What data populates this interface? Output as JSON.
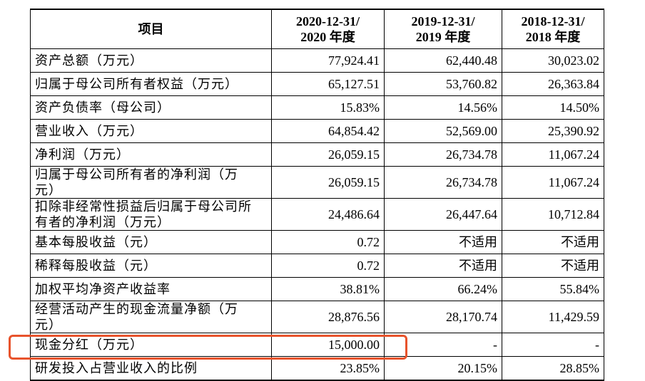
{
  "table": {
    "headers": [
      "项目",
      "2020-12-31/\n2020 年度",
      "2019-12-31/\n2019 年度",
      "2018-12-31/\n2018 年度"
    ],
    "rows": [
      [
        "资产总额（万元）",
        "77,924.41",
        "62,440.48",
        "30,023.02"
      ],
      [
        "归属于母公司所有者权益（万元）",
        "65,127.51",
        "53,760.82",
        "26,363.84"
      ],
      [
        "资产负债率（母公司）",
        "15.83%",
        "14.56%",
        "14.50%"
      ],
      [
        "营业收入（万元）",
        "64,854.42",
        "52,569.00",
        "25,390.92"
      ],
      [
        "净利润（万元）",
        "26,059.15",
        "26,734.78",
        "11,067.24"
      ],
      [
        "归属于母公司所有者的净利润（万元）",
        "26,059.15",
        "26,734.78",
        "11,067.24"
      ],
      [
        "扣除非经常性损益后归属于母公司所有者的净利润（万元）",
        "24,486.64",
        "26,447.64",
        "10,712.84"
      ],
      [
        "基本每股收益（元）",
        "0.72",
        "不适用",
        "不适用"
      ],
      [
        "稀释每股收益（元）",
        "0.72",
        "不适用",
        "不适用"
      ],
      [
        "加权平均净资产收益率",
        "38.81%",
        "66.24%",
        "55.84%"
      ],
      [
        "经营活动产生的现金流量净额（万元）",
        "28,876.56",
        "28,170.74",
        "11,429.59"
      ],
      [
        "现金分红（万元）",
        "15,000.00",
        "-",
        "-"
      ],
      [
        "研发投入占营业收入的比例",
        "23.85%",
        "20.15%",
        "28.85%"
      ]
    ]
  }
}
